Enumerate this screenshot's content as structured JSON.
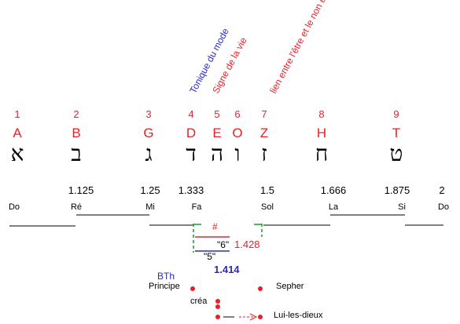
{
  "annotations": {
    "tonique": "Tonique du mode",
    "signe": "Signe de la vie",
    "lien": "lien entre l'être et le non être"
  },
  "numbers": [
    "1",
    "2",
    "3",
    "4",
    "5",
    "6",
    "7",
    "8",
    "9"
  ],
  "letters": [
    "A",
    "B",
    "G",
    "D",
    "E",
    "O",
    "Z",
    "H",
    "T"
  ],
  "hebrew": [
    "א",
    "ב",
    "ג",
    "ד",
    "ה",
    "ו",
    "ז",
    "ח",
    "ט"
  ],
  "ratios": [
    "1.125",
    "1.25",
    "1.333",
    "1.5",
    "1.666",
    "1.875",
    "2"
  ],
  "notes": [
    "Do",
    "Ré",
    "Mi",
    "Fa",
    "Sol",
    "La",
    "Si",
    "Do"
  ],
  "intervals": {
    "sharp": "#",
    "six": "\"6\"",
    "six_value": "1.428",
    "five": "\"5\"",
    "five_value": "1.414"
  },
  "labels": {
    "bth": "BTh",
    "principe": "Principe",
    "sepher": "Sepher",
    "crea": "créa",
    "lui": "Lui-les-dieux"
  }
}
